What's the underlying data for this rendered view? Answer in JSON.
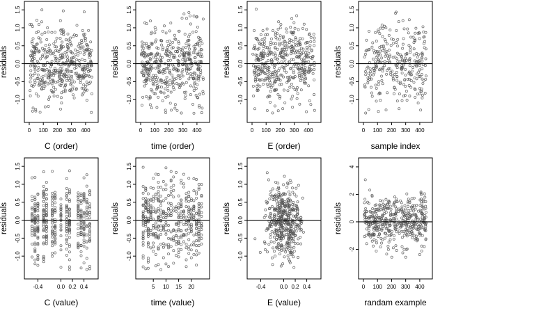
{
  "chart_data": [
    {
      "type": "scatter",
      "xlabel": "C (order)",
      "ylabel": "residuals",
      "xlim": [
        0,
        450
      ],
      "ylim": [
        -1.5,
        1.6
      ],
      "xticks": [
        0,
        100,
        200,
        300,
        400
      ],
      "xticklabels": [
        "0",
        "100",
        "200",
        "300",
        "400"
      ],
      "yticks": [
        -1.0,
        -0.5,
        0.0,
        0.5,
        1.0,
        1.5
      ],
      "yticklabels": [
        "-1.0",
        "-0.5",
        "0.0",
        "0.5",
        "1.0",
        "1.5"
      ],
      "hline": 0,
      "xmode": "uniform",
      "xvals": [],
      "seed": 11,
      "ysd": 0.55,
      "n": 450
    },
    {
      "type": "scatter",
      "xlabel": "time (order)",
      "ylabel": "residuals",
      "xlim": [
        0,
        450
      ],
      "ylim": [
        -1.5,
        1.6
      ],
      "xticks": [
        0,
        100,
        200,
        300,
        400
      ],
      "xticklabels": [
        "0",
        "100",
        "200",
        "300",
        "400"
      ],
      "yticks": [
        -1.0,
        -0.5,
        0.0,
        0.5,
        1.0,
        1.5
      ],
      "yticklabels": [
        "-1.0",
        "-0.5",
        "0.0",
        "0.5",
        "1.0",
        "1.5"
      ],
      "hline": 0,
      "xmode": "uniform",
      "xvals": [],
      "seed": 23,
      "ysd": 0.55,
      "n": 450
    },
    {
      "type": "scatter",
      "xlabel": "E (order)",
      "ylabel": "residuals",
      "xlim": [
        0,
        450
      ],
      "ylim": [
        -1.5,
        1.6
      ],
      "xticks": [
        0,
        100,
        200,
        300,
        400
      ],
      "xticklabels": [
        "0",
        "100",
        "200",
        "300",
        "400"
      ],
      "yticks": [
        -1.0,
        -0.5,
        0.0,
        0.5,
        1.0,
        1.5
      ],
      "yticklabels": [
        "-1.0",
        "-0.5",
        "0.0",
        "0.5",
        "1.0",
        "1.5"
      ],
      "hline": 0,
      "xmode": "uniform",
      "xvals": [],
      "seed": 37,
      "ysd": 0.55,
      "n": 450
    },
    {
      "type": "scatter",
      "xlabel": "sample index",
      "ylabel": "residuals",
      "xlim": [
        0,
        450
      ],
      "ylim": [
        -1.5,
        1.6
      ],
      "xticks": [
        0,
        100,
        200,
        300,
        400
      ],
      "xticklabels": [
        "0",
        "100",
        "200",
        "300",
        "400"
      ],
      "yticks": [
        -1.0,
        -0.5,
        0.0,
        0.5,
        1.0,
        1.5
      ],
      "yticklabels": [
        "-1.0",
        "-0.5",
        "0.0",
        "0.5",
        "1.0",
        "1.5"
      ],
      "hline": 0,
      "xmode": "uniform",
      "xvals": [],
      "seed": 41,
      "ysd": 0.55,
      "n": 300
    },
    {
      "type": "scatter",
      "xlabel": "C (value)",
      "ylabel": "residuals",
      "xlim": [
        -0.55,
        0.55
      ],
      "ylim": [
        -1.5,
        1.6
      ],
      "xticks": [
        -0.4,
        0.0,
        0.2,
        0.4
      ],
      "xticklabels": [
        "-0.4",
        "0.0",
        "0.2",
        "0.4"
      ],
      "yticks": [
        -1.0,
        -0.5,
        0.0,
        0.5,
        1.0,
        1.5
      ],
      "yticklabels": [
        "-1.0",
        "-0.5",
        "0.0",
        "0.5",
        "1.0",
        "1.5"
      ],
      "hline": 0,
      "xmode": "discrete",
      "xvals": [
        -0.5,
        -0.45,
        -0.4,
        -0.3,
        -0.25,
        -0.15,
        -0.1,
        0.0,
        0.1,
        0.15,
        0.3,
        0.35,
        0.4,
        0.45,
        0.5
      ],
      "seed": 53,
      "ysd": 0.55,
      "n": 450
    },
    {
      "type": "scatter",
      "xlabel": "time (value)",
      "ylabel": "residuals",
      "xlim": [
        0,
        25
      ],
      "ylim": [
        -1.5,
        1.6
      ],
      "xticks": [
        5,
        10,
        15,
        20
      ],
      "xticklabels": [
        "5",
        "10",
        "15",
        "20"
      ],
      "yticks": [
        -1.0,
        -0.5,
        0.0,
        0.5,
        1.0,
        1.5
      ],
      "yticklabels": [
        "-1.0",
        "-0.5",
        "0.0",
        "0.5",
        "1.0",
        "1.5"
      ],
      "hline": 0,
      "xmode": "discrete",
      "xvals": [
        1,
        2,
        3,
        4,
        5,
        6,
        7,
        8,
        9,
        10,
        11,
        12,
        13,
        14,
        15,
        16,
        17,
        18,
        19,
        20,
        21,
        22,
        23,
        24
      ],
      "seed": 67,
      "ysd": 0.55,
      "n": 450
    },
    {
      "type": "scatter",
      "xlabel": "E (value)",
      "ylabel": "residuals",
      "xlim": [
        -0.55,
        0.55
      ],
      "ylim": [
        -1.5,
        1.6
      ],
      "xticks": [
        -0.4,
        0.0,
        0.2,
        0.4
      ],
      "xticklabels": [
        "-0.4",
        "0.0",
        "0.2",
        "0.4"
      ],
      "yticks": [
        -1.0,
        -0.5,
        0.0,
        0.5,
        1.0,
        1.5
      ],
      "yticklabels": [
        "-1.0",
        "-0.5",
        "0.0",
        "0.5",
        "1.0",
        "1.5"
      ],
      "hline": 0,
      "xmode": "normal",
      "xvals": [],
      "seed": 79,
      "ysd": 0.5,
      "n": 450
    },
    {
      "type": "scatter",
      "xlabel": "randam example",
      "ylabel": "residuals",
      "xlim": [
        0,
        450
      ],
      "ylim": [
        -3.8,
        4.3
      ],
      "xticks": [
        0,
        100,
        200,
        300,
        400
      ],
      "xticklabels": [
        "0",
        "100",
        "200",
        "300",
        "400"
      ],
      "yticks": [
        -2,
        0,
        2,
        4
      ],
      "yticklabels": [
        "-2",
        "0",
        "2",
        "4"
      ],
      "hline": 0,
      "xmode": "uniform",
      "xvals": [],
      "seed": 97,
      "ysd": 1.0,
      "n": 450
    }
  ]
}
